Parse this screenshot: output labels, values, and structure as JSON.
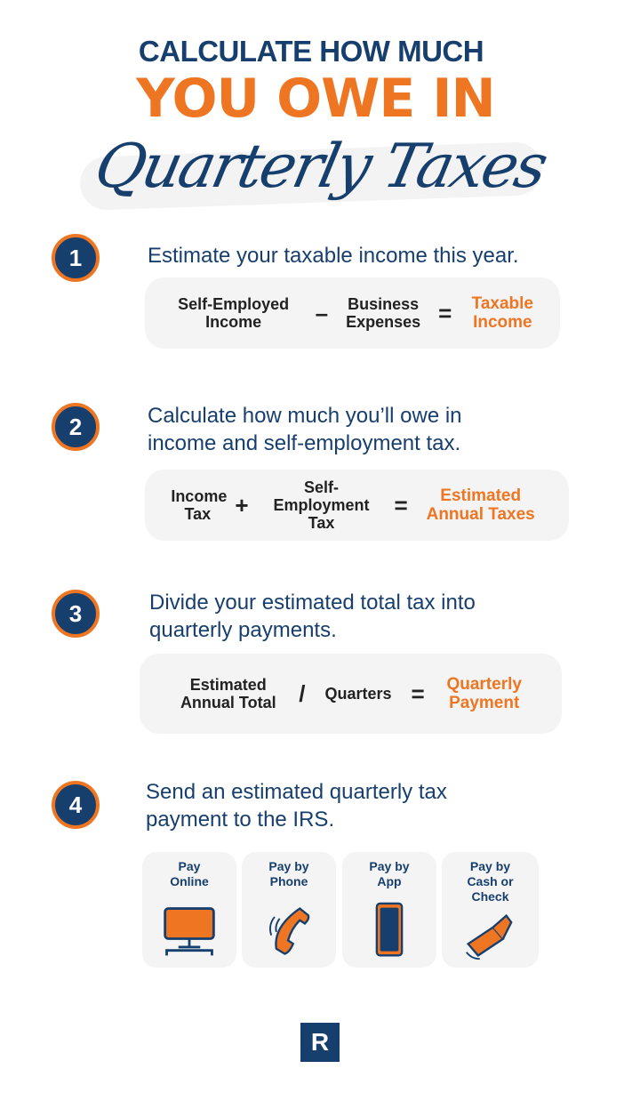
{
  "title": {
    "line1": "CALCULATE HOW MUCH",
    "line2": "YOU OWE IN",
    "line3": "Quarterly Taxes"
  },
  "colors": {
    "navy": "#173f6e",
    "orange": "#ee7623",
    "box_bg": "#f4f4f4"
  },
  "steps": [
    {
      "number": "1",
      "text": "Estimate your taxable income this year.",
      "formula": {
        "a": "Self-Employed Income",
        "op1": "–",
        "b": "Business Expenses",
        "op2": "=",
        "result": "Taxable Income"
      }
    },
    {
      "number": "2",
      "text": "Calculate how much you’ll owe in income and self-employment tax.",
      "formula": {
        "a": "Income Tax",
        "op1": "+",
        "b": "Self-Employment Tax",
        "op2": "=",
        "result": "Estimated Annual Taxes"
      }
    },
    {
      "number": "3",
      "text": "Divide your estimated total tax into quarterly payments.",
      "formula": {
        "a": "Estimated Annual Total",
        "op1": "/",
        "b": "Quarters",
        "op2": "=",
        "result": "Quarterly Payment"
      }
    },
    {
      "number": "4",
      "text": "Send an estimated quarterly tax payment to the IRS."
    }
  ],
  "payment_options": [
    {
      "label": "Pay Online",
      "icon": "computer-icon"
    },
    {
      "label": "Pay by Phone",
      "icon": "phone-icon"
    },
    {
      "label": "Pay by App",
      "icon": "smartphone-icon"
    },
    {
      "label": "Pay by Cash or Check",
      "icon": "wallet-icon"
    }
  ],
  "logo": "R"
}
